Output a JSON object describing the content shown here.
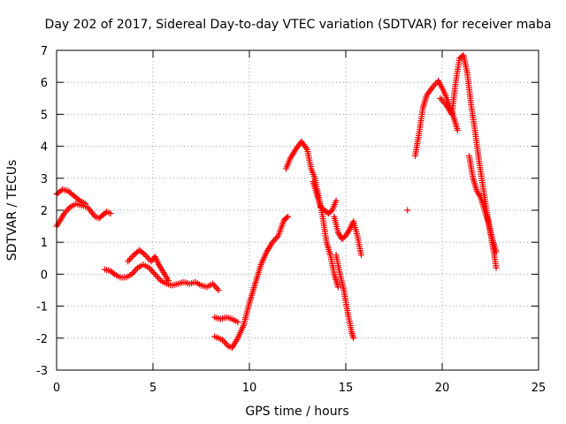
{
  "chart_data": {
    "type": "scatter",
    "title": "Day 202 of 2017, Sidereal Day-to-day VTEC variation (SDTVAR) for receiver maba",
    "xlabel": "GPS time / hours",
    "ylabel": "SDTVAR / TECUs",
    "xlim": [
      0,
      25
    ],
    "ylim": [
      -3,
      7
    ],
    "x_ticks": [
      0,
      5,
      10,
      15,
      20,
      25
    ],
    "y_ticks": [
      -3,
      -2,
      -1,
      0,
      1,
      2,
      3,
      4,
      5,
      6,
      7
    ],
    "grid": true,
    "marker": "+",
    "colors": {
      "series": "#ff0000",
      "grid": "#a0a0a0",
      "axis": "#000000"
    },
    "series": [
      {
        "name": "SDTVAR",
        "segments": [
          [
            [
              0.0,
              1.5
            ],
            [
              0.2,
              1.7
            ],
            [
              0.4,
              1.9
            ],
            [
              0.7,
              2.1
            ],
            [
              1.0,
              2.2
            ],
            [
              1.3,
              2.15
            ],
            [
              1.6,
              2.1
            ],
            [
              1.8,
              1.95
            ],
            [
              2.0,
              1.8
            ],
            [
              2.2,
              1.75
            ],
            [
              2.4,
              1.85
            ],
            [
              2.6,
              1.95
            ],
            [
              2.8,
              1.9
            ]
          ],
          [
            [
              0.0,
              2.5
            ],
            [
              0.3,
              2.65
            ],
            [
              0.6,
              2.6
            ],
            [
              0.9,
              2.45
            ],
            [
              1.2,
              2.3
            ],
            [
              1.5,
              2.2
            ]
          ],
          [
            [
              2.5,
              0.15
            ],
            [
              2.8,
              0.1
            ],
            [
              3.0,
              0.0
            ],
            [
              3.3,
              -0.1
            ],
            [
              3.6,
              -0.1
            ],
            [
              3.9,
              0.0
            ],
            [
              4.2,
              0.2
            ],
            [
              4.5,
              0.3
            ],
            [
              4.8,
              0.2
            ],
            [
              5.1,
              0.0
            ],
            [
              5.4,
              -0.2
            ],
            [
              5.7,
              -0.3
            ],
            [
              6.0,
              -0.35
            ],
            [
              6.3,
              -0.3
            ],
            [
              6.6,
              -0.25
            ],
            [
              6.9,
              -0.3
            ],
            [
              7.2,
              -0.25
            ],
            [
              7.5,
              -0.35
            ],
            [
              7.8,
              -0.4
            ],
            [
              8.1,
              -0.3
            ],
            [
              8.4,
              -0.5
            ]
          ],
          [
            [
              3.7,
              0.4
            ],
            [
              4.0,
              0.6
            ],
            [
              4.3,
              0.75
            ],
            [
              4.6,
              0.6
            ],
            [
              4.9,
              0.4
            ],
            [
              5.1,
              0.55
            ],
            [
              5.3,
              0.3
            ],
            [
              5.6,
              0.0
            ],
            [
              5.8,
              -0.2
            ]
          ],
          [
            [
              8.2,
              -1.35
            ],
            [
              8.5,
              -1.4
            ],
            [
              8.8,
              -1.35
            ],
            [
              9.1,
              -1.4
            ],
            [
              9.4,
              -1.5
            ]
          ],
          [
            [
              8.2,
              -1.95
            ],
            [
              8.6,
              -2.05
            ],
            [
              8.9,
              -2.25
            ],
            [
              9.1,
              -2.3
            ],
            [
              9.4,
              -2.0
            ],
            [
              9.7,
              -1.6
            ],
            [
              10.0,
              -0.9
            ],
            [
              10.3,
              -0.3
            ],
            [
              10.6,
              0.3
            ],
            [
              10.9,
              0.7
            ],
            [
              11.2,
              1.0
            ],
            [
              11.5,
              1.2
            ],
            [
              11.8,
              1.7
            ],
            [
              12.0,
              1.8
            ]
          ],
          [
            [
              11.9,
              3.3
            ],
            [
              12.1,
              3.6
            ],
            [
              12.4,
              3.9
            ],
            [
              12.7,
              4.15
            ],
            [
              13.0,
              3.9
            ],
            [
              13.2,
              3.3
            ],
            [
              13.4,
              3.0
            ],
            [
              13.6,
              2.4
            ],
            [
              13.8,
              1.8
            ],
            [
              14.0,
              1.0
            ],
            [
              14.2,
              0.6
            ],
            [
              14.4,
              0.0
            ],
            [
              14.6,
              -0.4
            ]
          ],
          [
            [
              13.3,
              2.9
            ],
            [
              13.5,
              2.5
            ],
            [
              13.7,
              2.1
            ],
            [
              13.9,
              2.0
            ],
            [
              14.1,
              1.9
            ],
            [
              14.3,
              2.0
            ],
            [
              14.5,
              2.3
            ]
          ],
          [
            [
              14.4,
              1.8
            ],
            [
              14.6,
              1.3
            ],
            [
              14.8,
              1.1
            ],
            [
              15.0,
              1.2
            ],
            [
              15.2,
              1.4
            ],
            [
              15.4,
              1.65
            ],
            [
              15.6,
              1.2
            ],
            [
              15.8,
              0.6
            ]
          ],
          [
            [
              14.5,
              0.6
            ],
            [
              14.7,
              0.0
            ],
            [
              14.9,
              -0.5
            ],
            [
              15.1,
              -1.2
            ],
            [
              15.3,
              -1.8
            ],
            [
              15.4,
              -2.0
            ]
          ],
          [
            [
              18.2,
              2.0
            ]
          ],
          [
            [
              18.6,
              3.7
            ],
            [
              18.8,
              4.4
            ],
            [
              19.0,
              5.2
            ],
            [
              19.2,
              5.6
            ],
            [
              19.5,
              5.85
            ],
            [
              19.8,
              6.05
            ],
            [
              20.1,
              5.7
            ],
            [
              20.3,
              5.4
            ],
            [
              20.6,
              4.9
            ],
            [
              20.8,
              4.5
            ]
          ],
          [
            [
              19.9,
              5.5
            ],
            [
              20.2,
              5.3
            ],
            [
              20.5,
              5.0
            ],
            [
              20.7,
              6.0
            ],
            [
              20.9,
              6.75
            ],
            [
              21.1,
              6.85
            ],
            [
              21.3,
              6.3
            ],
            [
              21.5,
              5.3
            ],
            [
              21.7,
              4.5
            ],
            [
              21.9,
              3.6
            ],
            [
              22.1,
              2.8
            ],
            [
              22.3,
              2.0
            ],
            [
              22.5,
              1.3
            ],
            [
              22.7,
              0.6
            ],
            [
              22.8,
              0.2
            ]
          ],
          [
            [
              21.4,
              3.7
            ],
            [
              21.6,
              3.0
            ],
            [
              21.8,
              2.6
            ],
            [
              22.0,
              2.4
            ],
            [
              22.2,
              2.0
            ],
            [
              22.4,
              1.6
            ],
            [
              22.6,
              1.1
            ],
            [
              22.8,
              0.7
            ]
          ]
        ]
      }
    ]
  }
}
